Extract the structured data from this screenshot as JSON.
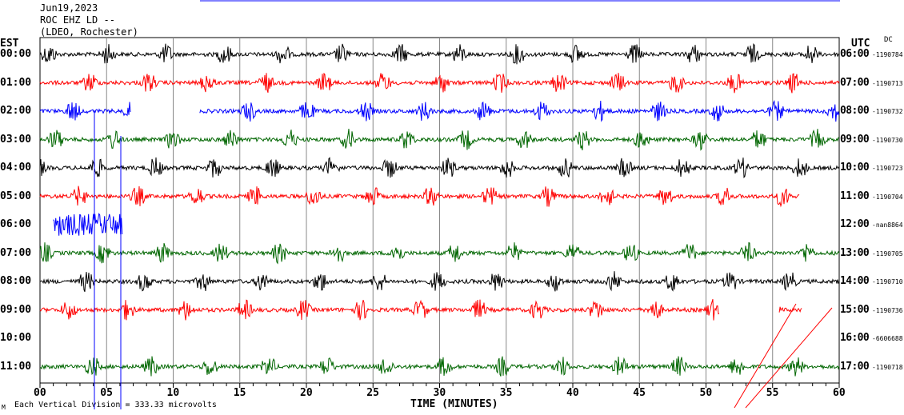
{
  "header": {
    "date": "Jun19,2023",
    "station": "ROC EHZ LD --",
    "network": "(LDEO, Rochester)"
  },
  "left_axis_title": "EST",
  "right_axis_title": "UTC",
  "dc_label": "DC",
  "footer": {
    "scale_text": "Each Vertical Division = 333.33 microvolts",
    "corner_mark": "M"
  },
  "chart_data": {
    "type": "line",
    "title": "ROC EHZ LD -- Jun19,2023",
    "xlabel": "TIME (MINUTES)",
    "xlim": [
      0,
      60
    ],
    "x_ticks": [
      "00",
      "05",
      "10",
      "15",
      "20",
      "25",
      "30",
      "35",
      "40",
      "45",
      "50",
      "55",
      "60"
    ],
    "colors": [
      "#000000",
      "#ff0000",
      "#0000ff",
      "#006600"
    ],
    "rows": [
      {
        "est": "00:00",
        "utc": "06:00",
        "dc": "-1190784",
        "start": 0,
        "end": 60
      },
      {
        "est": "01:00",
        "utc": "07:00",
        "dc": "-1190713",
        "start": 0,
        "end": 60
      },
      {
        "est": "02:00",
        "utc": "08:00",
        "dc": "-1190732",
        "start": 0,
        "end": 60,
        "gap": [
          6.8,
          12
        ]
      },
      {
        "est": "03:00",
        "utc": "09:00",
        "dc": "-1190730",
        "start": 0,
        "end": 60
      },
      {
        "est": "04:00",
        "utc": "10:00",
        "dc": "-1190723",
        "start": 0,
        "end": 60
      },
      {
        "est": "05:00",
        "utc": "11:00",
        "dc": "-1190704",
        "start": 0,
        "end": 57
      },
      {
        "est": "06:00",
        "utc": "12:00",
        "dc": "-nan8864",
        "start": 1,
        "end": 6.2
      },
      {
        "est": "07:00",
        "utc": "13:00",
        "dc": "-1190705",
        "start": 0,
        "end": 60
      },
      {
        "est": "08:00",
        "utc": "14:00",
        "dc": "-1190710",
        "start": 0,
        "end": 60
      },
      {
        "est": "09:00",
        "utc": "15:00",
        "dc": "-1190736",
        "start": 0,
        "end": 51,
        "extra": [
          55.5,
          57.2
        ]
      },
      {
        "est": "10:00",
        "utc": "16:00",
        "dc": "-6606688",
        "start": 0,
        "end": 0
      },
      {
        "est": "11:00",
        "utc": "17:00",
        "dc": "-1190718",
        "start": 0,
        "end": 60
      }
    ]
  }
}
